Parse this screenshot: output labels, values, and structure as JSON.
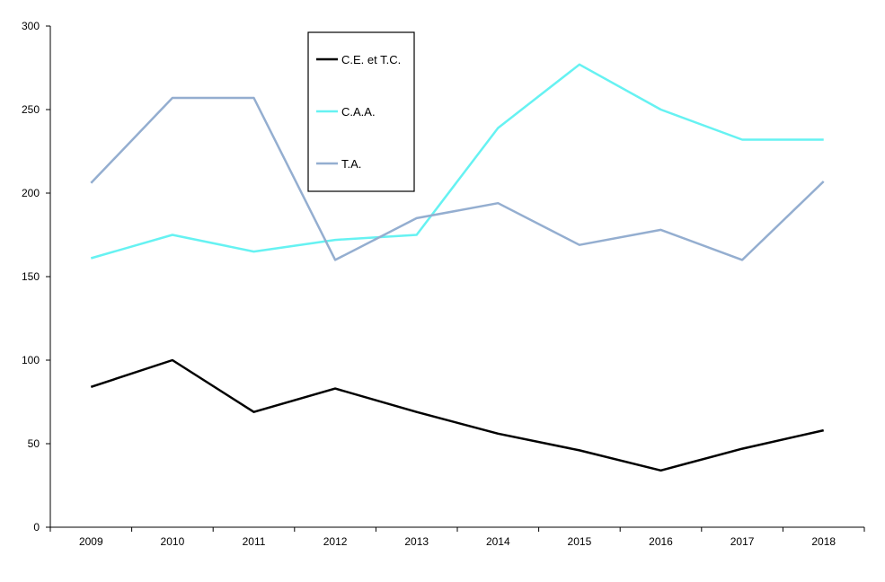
{
  "chart_data": {
    "type": "line",
    "categories": [
      "2009",
      "2010",
      "2011",
      "2012",
      "2013",
      "2014",
      "2015",
      "2016",
      "2017",
      "2018"
    ],
    "ylim": [
      0,
      300
    ],
    "yticks": [
      0,
      50,
      100,
      150,
      200,
      250,
      300
    ],
    "grid": false,
    "legend": "top-center",
    "series": [
      {
        "name": "C.E. et T.C.",
        "color": "#000000",
        "values": [
          84,
          100,
          69,
          83,
          69,
          56,
          46,
          34,
          47,
          58
        ]
      },
      {
        "name": "C.A.A.",
        "color": "#66f2f2",
        "values": [
          161,
          175,
          165,
          172,
          175,
          239,
          277,
          250,
          232,
          232
        ]
      },
      {
        "name": "T.A.",
        "color": "#94aed0",
        "values": [
          206,
          257,
          257,
          160,
          185,
          194,
          169,
          178,
          160,
          207
        ]
      }
    ]
  }
}
